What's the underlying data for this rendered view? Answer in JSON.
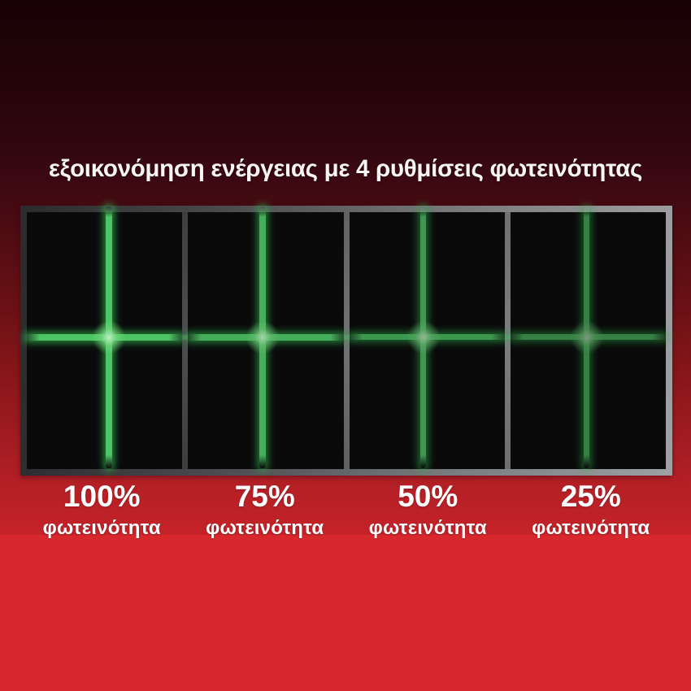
{
  "headline": "εξοικονόμηση ενέργειας με 4 ρυθμίσεις φωτεινότητας",
  "panels": [
    {
      "percent": "100%",
      "caption": "φωτεινότητα",
      "brightness_pct": 100
    },
    {
      "percent": "75%",
      "caption": "φωτεινότητα",
      "brightness_pct": 75
    },
    {
      "percent": "50%",
      "caption": "φωτεινότητα",
      "brightness_pct": 50
    },
    {
      "percent": "25%",
      "caption": "φωτεινότητα",
      "brightness_pct": 25
    }
  ],
  "colors": {
    "laser_green": "#4ec565",
    "bright_red_bottom": "#d9282d",
    "dark_red_top": "#180205",
    "panel_black": "#0a0a0b",
    "frame_gray": "#77797b",
    "text_white": "#ffffff"
  }
}
